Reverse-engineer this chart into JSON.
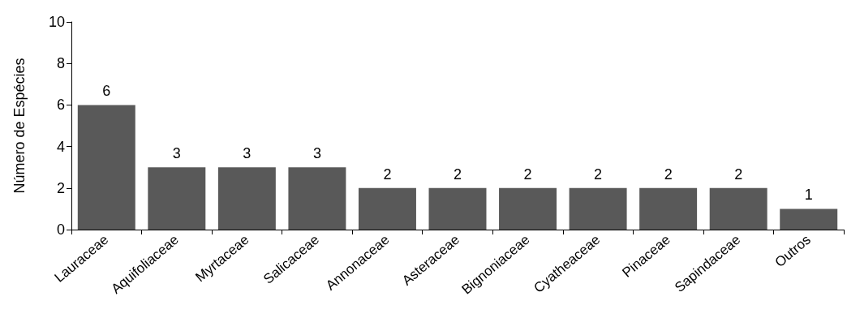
{
  "chart_data": {
    "type": "bar",
    "ylabel": "Número de Espécies",
    "categories": [
      "Lauraceae",
      "Aquifoliaceae",
      "Myrtaceae",
      "Salicaceae",
      "Annonaceae",
      "Asteraceae",
      "Bignoniaceae",
      "Cyatheaceae",
      "Pinaceae",
      "Sapindaceae",
      "Outros"
    ],
    "values": [
      6,
      3,
      3,
      3,
      2,
      2,
      2,
      2,
      2,
      2,
      1
    ],
    "color": "#595959",
    "ylim": [
      0,
      10
    ],
    "yticks": [
      0,
      2,
      4,
      6,
      8,
      10
    ],
    "grid": false,
    "data_labels": true
  }
}
